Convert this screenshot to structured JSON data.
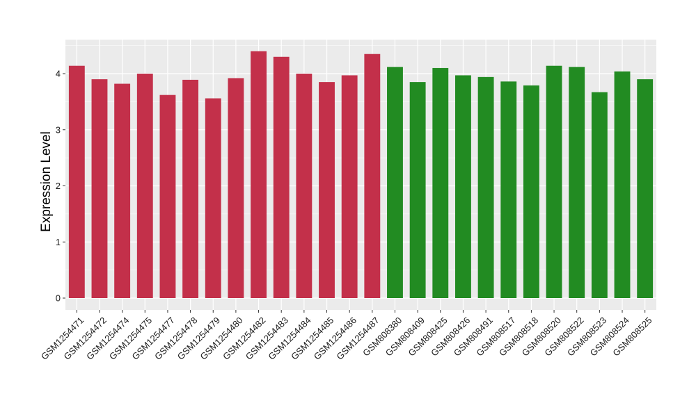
{
  "chart_data": {
    "type": "bar",
    "title": "",
    "xlabel": "",
    "ylabel": "Expression Level",
    "ylim": [
      0,
      4.6
    ],
    "yticks": [
      0,
      1,
      2,
      3,
      4
    ],
    "grid": true,
    "legend": "none",
    "categories": [
      "GSM1254471",
      "GSM1254472",
      "GSM1254474",
      "GSM1254475",
      "GSM1254477",
      "GSM1254478",
      "GSM1254479",
      "GSM1254480",
      "GSM1254482",
      "GSM1254483",
      "GSM1254484",
      "GSM1254485",
      "GSM1254486",
      "GSM1254487",
      "GSM808380",
      "GSM808409",
      "GSM808425",
      "GSM808426",
      "GSM808491",
      "GSM808517",
      "GSM808518",
      "GSM808520",
      "GSM808522",
      "GSM808523",
      "GSM808524",
      "GSM808525"
    ],
    "values": [
      4.14,
      3.9,
      3.82,
      4.0,
      3.62,
      3.89,
      3.56,
      3.92,
      4.4,
      4.3,
      4.0,
      3.85,
      3.97,
      4.35,
      4.12,
      3.85,
      4.1,
      3.97,
      3.94,
      3.86,
      3.79,
      4.14,
      4.12,
      3.67,
      4.04,
      3.9
    ],
    "groups": [
      0,
      0,
      0,
      0,
      0,
      0,
      0,
      0,
      0,
      0,
      0,
      0,
      0,
      0,
      1,
      1,
      1,
      1,
      1,
      1,
      1,
      1,
      1,
      1,
      1,
      1
    ],
    "colors": [
      "#c3304a",
      "#228b22"
    ],
    "panel_color": "#ebebeb",
    "grid_color": "#ffffff"
  }
}
